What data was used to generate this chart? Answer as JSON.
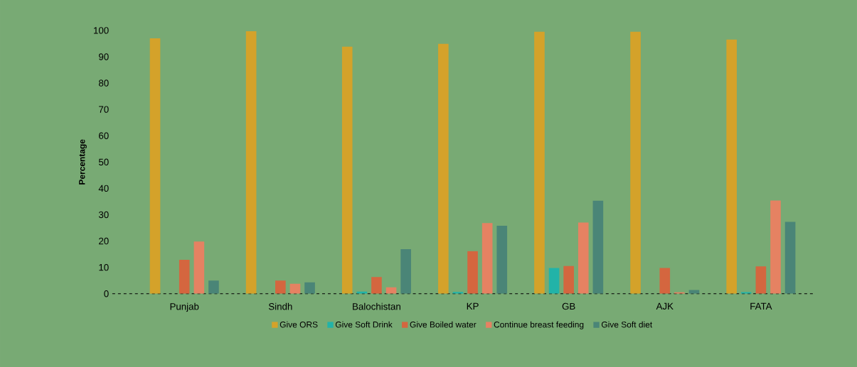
{
  "chart_data": {
    "type": "bar",
    "ylabel": "Percentage",
    "categories": [
      "Punjab",
      "Sindh",
      "Balochistan",
      "KP",
      "GB",
      "AJK",
      "FATA"
    ],
    "series": [
      {
        "name": "Give ORS",
        "color": "#d4a22a",
        "values": [
          97,
          99.7,
          93.8,
          94.9,
          99.5,
          99.5,
          96.5
        ]
      },
      {
        "name": "Give Soft Drink",
        "color": "#22b3a8",
        "values": [
          0,
          0,
          0.8,
          0.7,
          9.8,
          0,
          0.6
        ]
      },
      {
        "name": "Give Boiled water",
        "color": "#d4663f",
        "values": [
          12.9,
          5,
          6.3,
          16.2,
          10.5,
          9.8,
          10.4
        ]
      },
      {
        "name": "Continue breast feeding",
        "color": "#e58262",
        "values": [
          19.8,
          3.8,
          2.4,
          26.8,
          27,
          0.5,
          35.4
        ]
      },
      {
        "name": "Give Soft diet",
        "color": "#4a8577",
        "values": [
          5,
          4.3,
          16.9,
          25.8,
          35.3,
          1.4,
          27.3
        ]
      }
    ],
    "ylim": [
      0,
      100
    ],
    "yticks": [
      0,
      10,
      20,
      30,
      40,
      50,
      60,
      70,
      80,
      90,
      100
    ],
    "grid": false,
    "legend": "bottom"
  }
}
